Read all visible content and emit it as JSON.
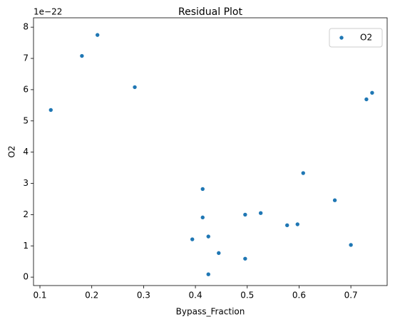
{
  "chart_data": {
    "type": "scatter",
    "title": "Residual Plot",
    "x_label": "Bypass_Fraction",
    "y_label": "O2",
    "y_offset_label": "1e−22",
    "series": [
      {
        "name": "O2",
        "color": "#1f77b4",
        "x": [
          0.121,
          0.181,
          0.211,
          0.283,
          0.394,
          0.414,
          0.414,
          0.425,
          0.425,
          0.445,
          0.496,
          0.496,
          0.526,
          0.577,
          0.597,
          0.608,
          0.669,
          0.7,
          0.73,
          0.741
        ],
        "values": [
          5.35,
          7.08,
          7.75,
          6.08,
          1.21,
          2.82,
          1.91,
          1.3,
          0.09,
          0.77,
          2.0,
          0.59,
          2.05,
          1.66,
          1.69,
          3.33,
          2.46,
          1.03,
          5.69,
          5.9
        ]
      }
    ],
    "xlim": [
      0.0876,
      0.77
    ],
    "ylim": [
      -0.27,
      8.3
    ],
    "xticks": [
      0.1,
      0.2,
      0.3,
      0.4,
      0.5,
      0.6,
      0.7
    ],
    "yticks": [
      0,
      1,
      2,
      3,
      4,
      5,
      6,
      7,
      8
    ],
    "legend": "upper right"
  }
}
